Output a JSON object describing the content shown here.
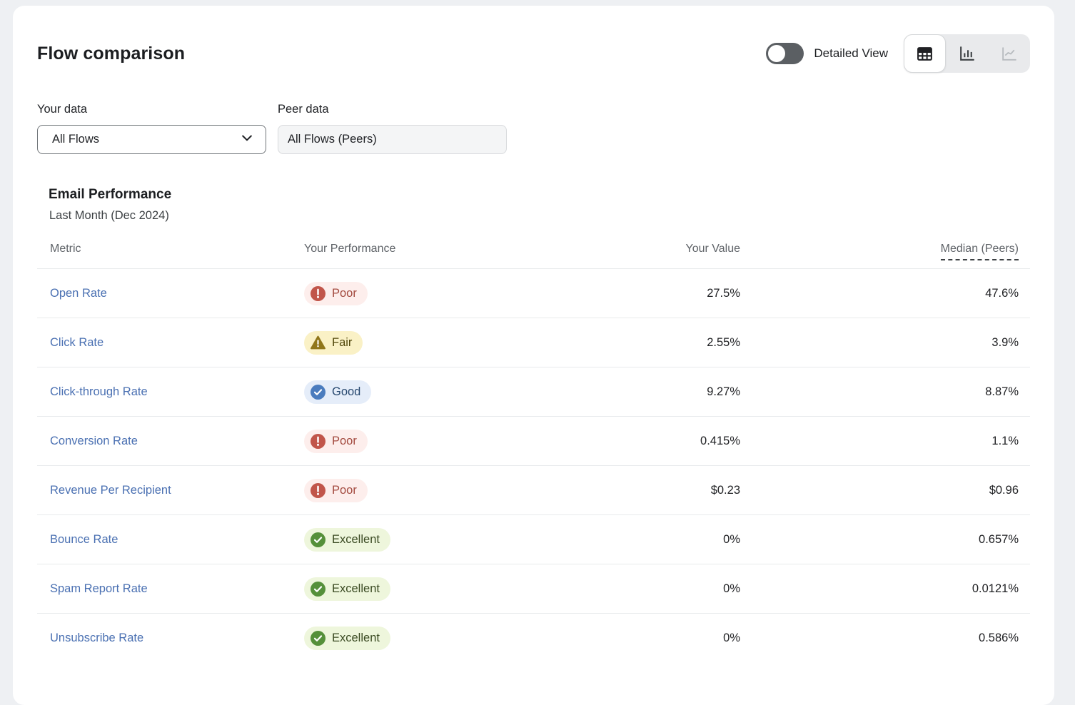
{
  "header": {
    "title": "Flow comparison",
    "detailed_view_label": "Detailed View",
    "detailed_view_state": "off",
    "view_modes": [
      {
        "id": "table",
        "icon": "table-icon",
        "active": true,
        "disabled": false
      },
      {
        "id": "bar-chart",
        "icon": "bar-chart-icon",
        "active": false,
        "disabled": false
      },
      {
        "id": "line-chart",
        "icon": "line-chart-icon",
        "active": false,
        "disabled": true
      }
    ]
  },
  "filters": {
    "your_data": {
      "label": "Your data",
      "selected": "All Flows"
    },
    "peer_data": {
      "label": "Peer data",
      "value": "All Flows (Peers)"
    }
  },
  "section": {
    "title": "Email Performance",
    "subtitle": "Last Month (Dec 2024)"
  },
  "table": {
    "columns": [
      "Metric",
      "Your Performance",
      "Your Value",
      "Median (Peers)"
    ],
    "rows": [
      {
        "metric": "Open Rate",
        "performance": "Poor",
        "status": "poor",
        "your_value": "27.5%",
        "median_peers": "47.6%"
      },
      {
        "metric": "Click Rate",
        "performance": "Fair",
        "status": "fair",
        "your_value": "2.55%",
        "median_peers": "3.9%"
      },
      {
        "metric": "Click-through Rate",
        "performance": "Good",
        "status": "good",
        "your_value": "9.27%",
        "median_peers": "8.87%"
      },
      {
        "metric": "Conversion Rate",
        "performance": "Poor",
        "status": "poor",
        "your_value": "0.415%",
        "median_peers": "1.1%"
      },
      {
        "metric": "Revenue Per Recipient",
        "performance": "Poor",
        "status": "poor",
        "your_value": "$0.23",
        "median_peers": "$0.96"
      },
      {
        "metric": "Bounce Rate",
        "performance": "Excellent",
        "status": "excellent",
        "your_value": "0%",
        "median_peers": "0.657%"
      },
      {
        "metric": "Spam Report Rate",
        "performance": "Excellent",
        "status": "excellent",
        "your_value": "0%",
        "median_peers": "0.0121%"
      },
      {
        "metric": "Unsubscribe Rate",
        "performance": "Excellent",
        "status": "excellent",
        "your_value": "0%",
        "median_peers": "0.586%"
      }
    ]
  },
  "status_colors": {
    "poor": {
      "bg": "#fdeeec",
      "icon": "#c1554a",
      "text": "#a34a3f",
      "glyph": "circle-exclamation"
    },
    "fair": {
      "bg": "#faf1c6",
      "icon": "#90761a",
      "text": "#51470a",
      "glyph": "triangle-exclamation"
    },
    "good": {
      "bg": "#e5edf9",
      "icon": "#4a7cbe",
      "text": "#27486f",
      "glyph": "circle-check"
    },
    "excellent": {
      "bg": "#eef6dc",
      "icon": "#55903a",
      "text": "#3a4a22",
      "glyph": "circle-check"
    }
  },
  "colors": {
    "link": "#4a70b2",
    "toggle_track": "#5b5f63",
    "card_bg": "#ffffff",
    "page_bg": "#eef0f3",
    "separator": "#e8eaec"
  }
}
